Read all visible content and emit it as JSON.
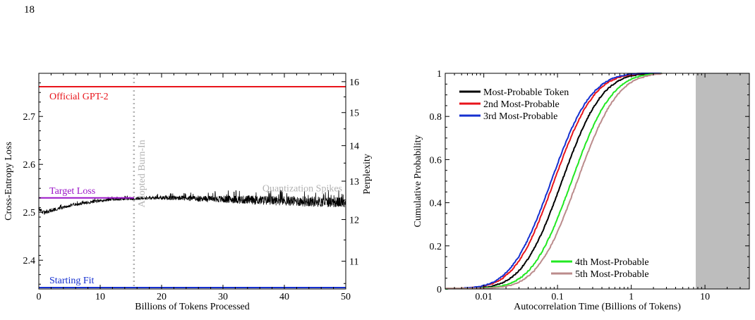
{
  "page": {
    "number": "18"
  },
  "colors": {
    "red": "#e8141b",
    "purple": "#9b16c8",
    "blue": "#1530d0",
    "gray_label": "#b3b3b3",
    "black": "#000000",
    "green": "#22e822",
    "rosy": "#bb8c8c",
    "shade": "#bdbdbd"
  },
  "chart_data": [
    {
      "type": "line",
      "xlabel": "Billions of Tokens Processed",
      "ylabel": "Cross-Entropy Loss",
      "y2label": "Perplexity",
      "xlim": [
        0,
        50
      ],
      "ylim": [
        2.34,
        2.79
      ],
      "y2_scale": "exp(loss)",
      "x_ticks": [
        "0",
        "10",
        "20",
        "30",
        "40",
        "50"
      ],
      "y_ticks": [
        "2.4",
        "2.5",
        "2.6",
        "2.7"
      ],
      "y2_ticks": [
        "11",
        "12",
        "13",
        "14",
        "15",
        "16"
      ],
      "reference_lines": [
        {
          "label": "Official GPT-2",
          "y": 2.762,
          "color": "#e8141b"
        },
        {
          "label": "Target Loss",
          "y": 2.53,
          "x_end": 15.5,
          "color": "#9b16c8"
        },
        {
          "label": "Starting Fit",
          "y": 2.343,
          "color": "#1530d0"
        }
      ],
      "vertical_marker": {
        "label": "Adopted Burn-In",
        "x": 15.5,
        "style": "dotted",
        "color": "#b3b3b3"
      },
      "annotation": {
        "label": "Quantization Spikes",
        "color": "#b3b3b3"
      },
      "series": [
        {
          "style": "noisy",
          "color": "#000000",
          "x": [
            0,
            0.5,
            1,
            2,
            4,
            6,
            8,
            10,
            12,
            14,
            16,
            18,
            20,
            22,
            25,
            28,
            31,
            34,
            37,
            40,
            43,
            46,
            50
          ],
          "y": [
            2.508,
            2.502,
            2.499,
            2.504,
            2.511,
            2.516,
            2.52,
            2.524,
            2.527,
            2.528,
            2.529,
            2.53,
            2.53,
            2.53,
            2.529,
            2.528,
            2.527,
            2.526,
            2.525,
            2.524,
            2.523,
            2.522,
            2.521
          ],
          "band_halfwidth": [
            0.004,
            0.004,
            0.004,
            0.004,
            0.003,
            0.003,
            0.003,
            0.003,
            0.003,
            0.003,
            0.003,
            0.003,
            0.004,
            0.005,
            0.006,
            0.007,
            0.008,
            0.009,
            0.01,
            0.01,
            0.011,
            0.011,
            0.011
          ]
        }
      ]
    },
    {
      "type": "line",
      "xlabel": "Autocorrelation Time (Billions of Tokens)",
      "ylabel": "Cumulative Probability",
      "x_scale": "log",
      "xlim": [
        0.003,
        40
      ],
      "ylim": [
        0,
        1
      ],
      "x_ticks": [
        {
          "value": 0.01,
          "label": "0.01"
        },
        {
          "value": 0.1,
          "label": "0.1"
        },
        {
          "value": 1,
          "label": "1"
        },
        {
          "value": 10,
          "label": "10"
        }
      ],
      "y_ticks": [
        "0",
        "0.2",
        "0.4",
        "0.6",
        "0.8",
        "1"
      ],
      "shaded_region": {
        "x_start": 7.5,
        "x_end": 40,
        "color": "#bdbdbd"
      },
      "legend": [
        {
          "position": "top-left",
          "entries": [
            "Most-Probable Token",
            "2nd Most-Probable",
            "3rd Most-Probable"
          ]
        },
        {
          "position": "bottom-right",
          "entries": [
            "4th Most-Probable",
            "5th Most-Probable"
          ]
        }
      ],
      "series": [
        {
          "name": "Most-Probable Token",
          "color": "#000000",
          "median": 0.115,
          "spread": 0.98
        },
        {
          "name": "2nd Most-Probable",
          "color": "#e8141b",
          "median": 0.09,
          "spread": 0.98
        },
        {
          "name": "3rd Most-Probable",
          "color": "#1530d0",
          "median": 0.082,
          "spread": 0.98
        },
        {
          "name": "4th Most-Probable",
          "color": "#22e822",
          "median": 0.155,
          "spread": 0.98
        },
        {
          "name": "5th Most-Probable",
          "color": "#bb8c8c",
          "median": 0.185,
          "spread": 0.98
        }
      ]
    }
  ]
}
